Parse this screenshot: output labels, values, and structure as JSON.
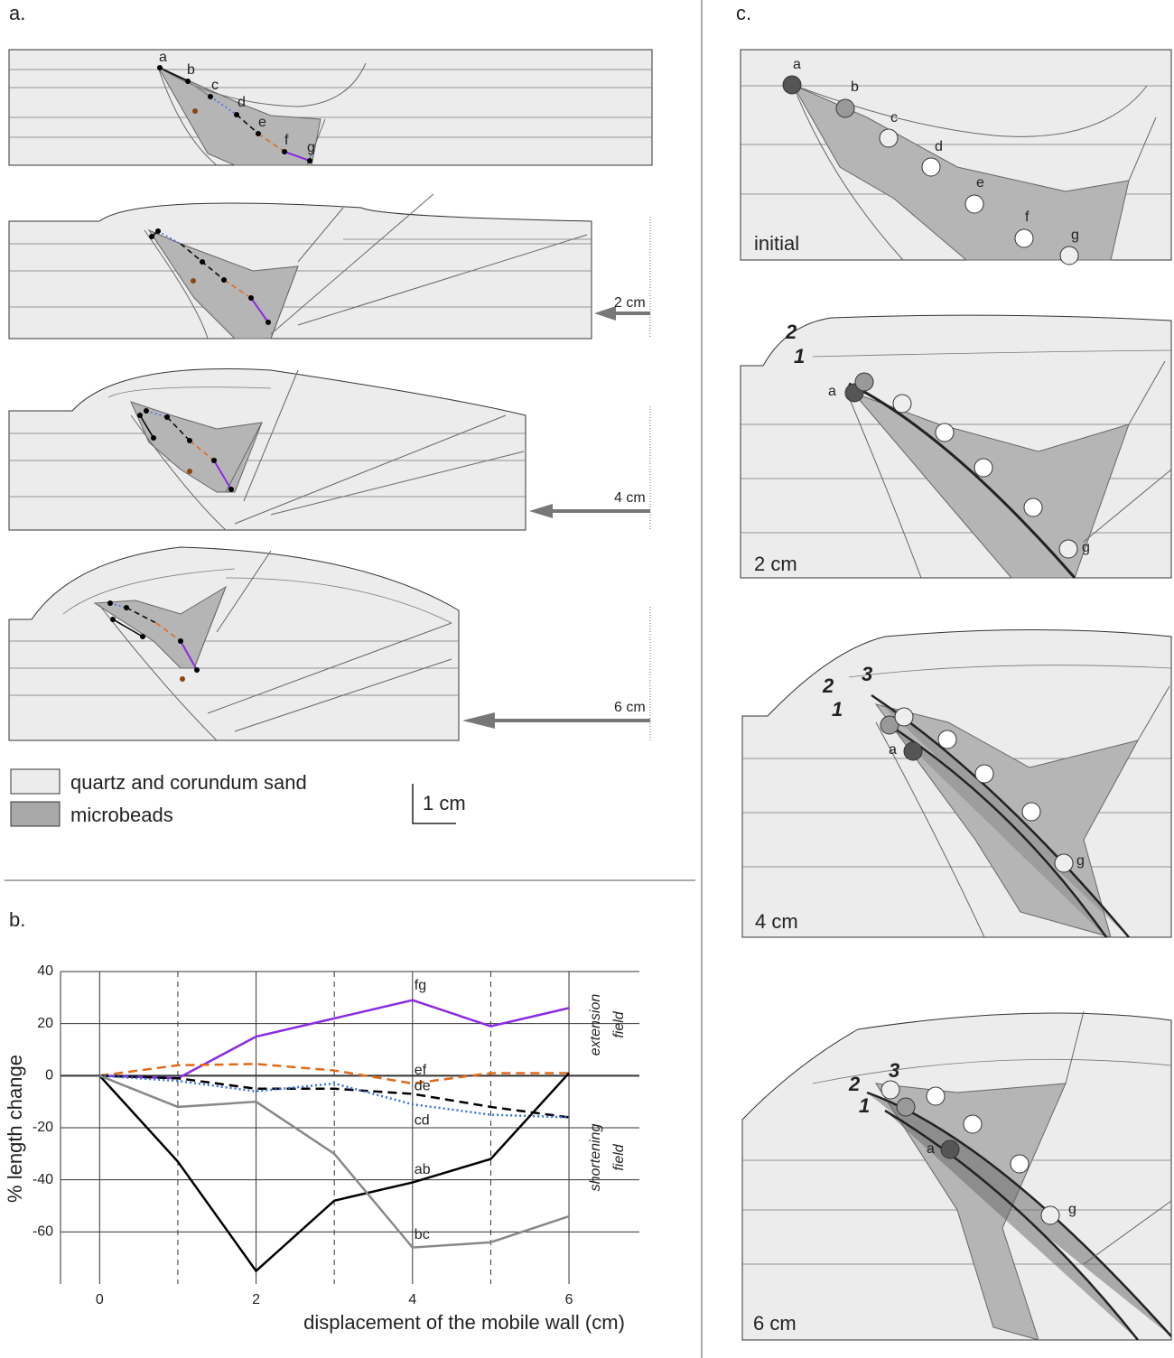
{
  "panel_labels": [
    "a.",
    "b.",
    "c."
  ],
  "points": [
    "a",
    "b",
    "c",
    "d",
    "e",
    "f",
    "g"
  ],
  "displacements": [
    "2 cm",
    "4 cm",
    "6 cm"
  ],
  "legend": {
    "items": [
      "quartz and corundum sand",
      "microbeads"
    ],
    "scale": "1 cm"
  },
  "stages": [
    "initial",
    "2 cm",
    "4 cm",
    "6 cm"
  ],
  "fault_labels": [
    "1",
    "2",
    "3"
  ],
  "chart_data": {
    "type": "line",
    "x": [
      0,
      1,
      2,
      3,
      4,
      5,
      6
    ],
    "xlim": [
      -0.5,
      6.9
    ],
    "xticks": [
      0,
      2,
      4,
      6
    ],
    "minor_xticks": [
      1,
      3,
      5
    ],
    "ylim": [
      -80,
      40
    ],
    "yticks": [
      -60,
      -40,
      -20,
      0,
      20,
      40
    ],
    "xlabel": "displacement of the mobile wall (cm)",
    "ylabel": "% length change",
    "annotations": [
      [
        "extension",
        "field"
      ],
      [
        "shortening",
        "field"
      ]
    ],
    "series": [
      {
        "name": "fg",
        "color": "#8a2be2",
        "style": "solid",
        "values": [
          0,
          -1,
          15,
          22,
          29,
          19,
          26
        ]
      },
      {
        "name": "ef",
        "color": "#e06a1b",
        "style": "dashed",
        "values": [
          0,
          4,
          4.5,
          2,
          -3,
          1,
          1
        ]
      },
      {
        "name": "de",
        "color": "#000000",
        "style": "dashed",
        "values": [
          0,
          -1,
          -5,
          -5,
          -7,
          -12,
          -16
        ]
      },
      {
        "name": "cd",
        "color": "#3a6fe0",
        "style": "dotted",
        "values": [
          0,
          -2,
          -6,
          -3,
          -11,
          -15,
          -16
        ]
      },
      {
        "name": "ab",
        "color": "#000000",
        "style": "solid",
        "values": [
          0,
          -33,
          -75,
          -48,
          -41,
          -32,
          1
        ]
      },
      {
        "name": "bc",
        "color": "#888888",
        "style": "solid",
        "values": [
          0,
          -12,
          -10,
          -30,
          -66,
          -64,
          -54
        ]
      }
    ]
  }
}
